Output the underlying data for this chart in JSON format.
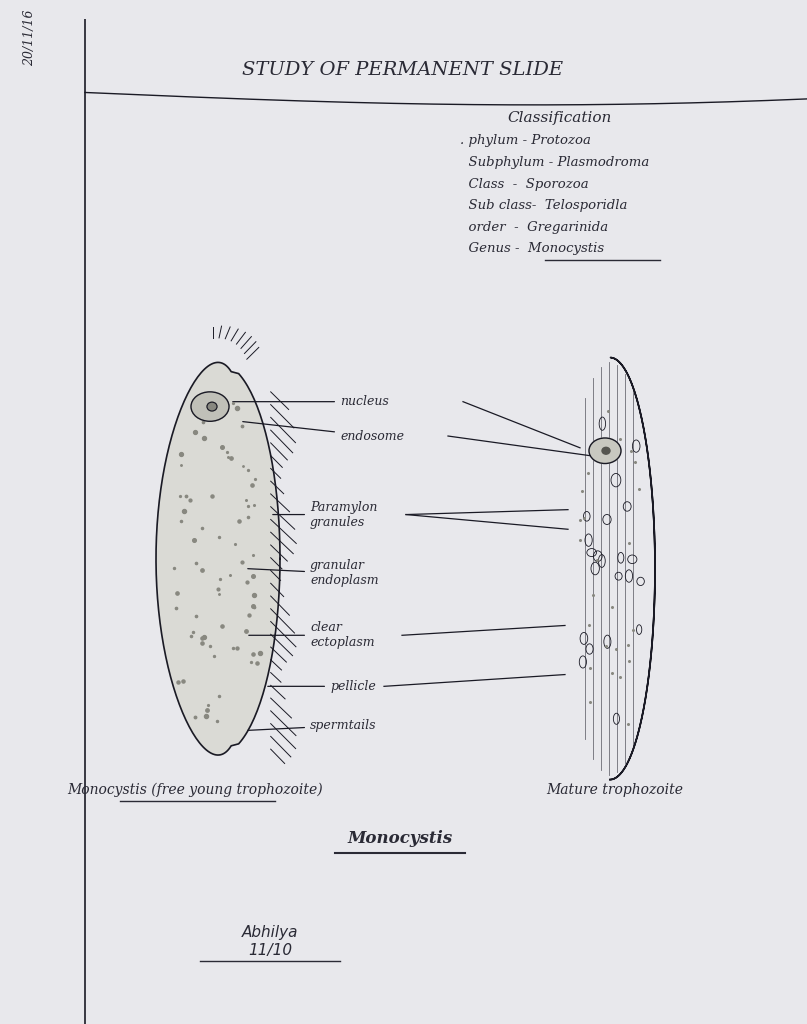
{
  "bg_color": "#e8e8ec",
  "page_bg": "#dcdce0",
  "title": "STUDY OF PERMANENT SLIDE",
  "date": "20/11/16",
  "classification_title": "Classification",
  "classification_lines": [
    ". phylum - Protozoa",
    "  Subphylum - Plasmodroma",
    "  Class  -  Sporozoa",
    "  Sub class-  Telosporidla",
    "  order  -  Gregarinida",
    "  Genus -  Monocystis"
  ],
  "labels": [
    "nucleus",
    "endosome",
    "Paramylon\ngranules",
    "granular\nendoplasm",
    "clear\nectoplasm",
    "pellicle",
    "spermtails"
  ],
  "caption_left": "Monocystis (free young trophozoite)",
  "caption_right": "Mature trophozoite",
  "caption_center": "Monocystis",
  "signature": "Abhilya\n11/10",
  "text_color": "#2a2a35",
  "line_color": "#1a1a25"
}
